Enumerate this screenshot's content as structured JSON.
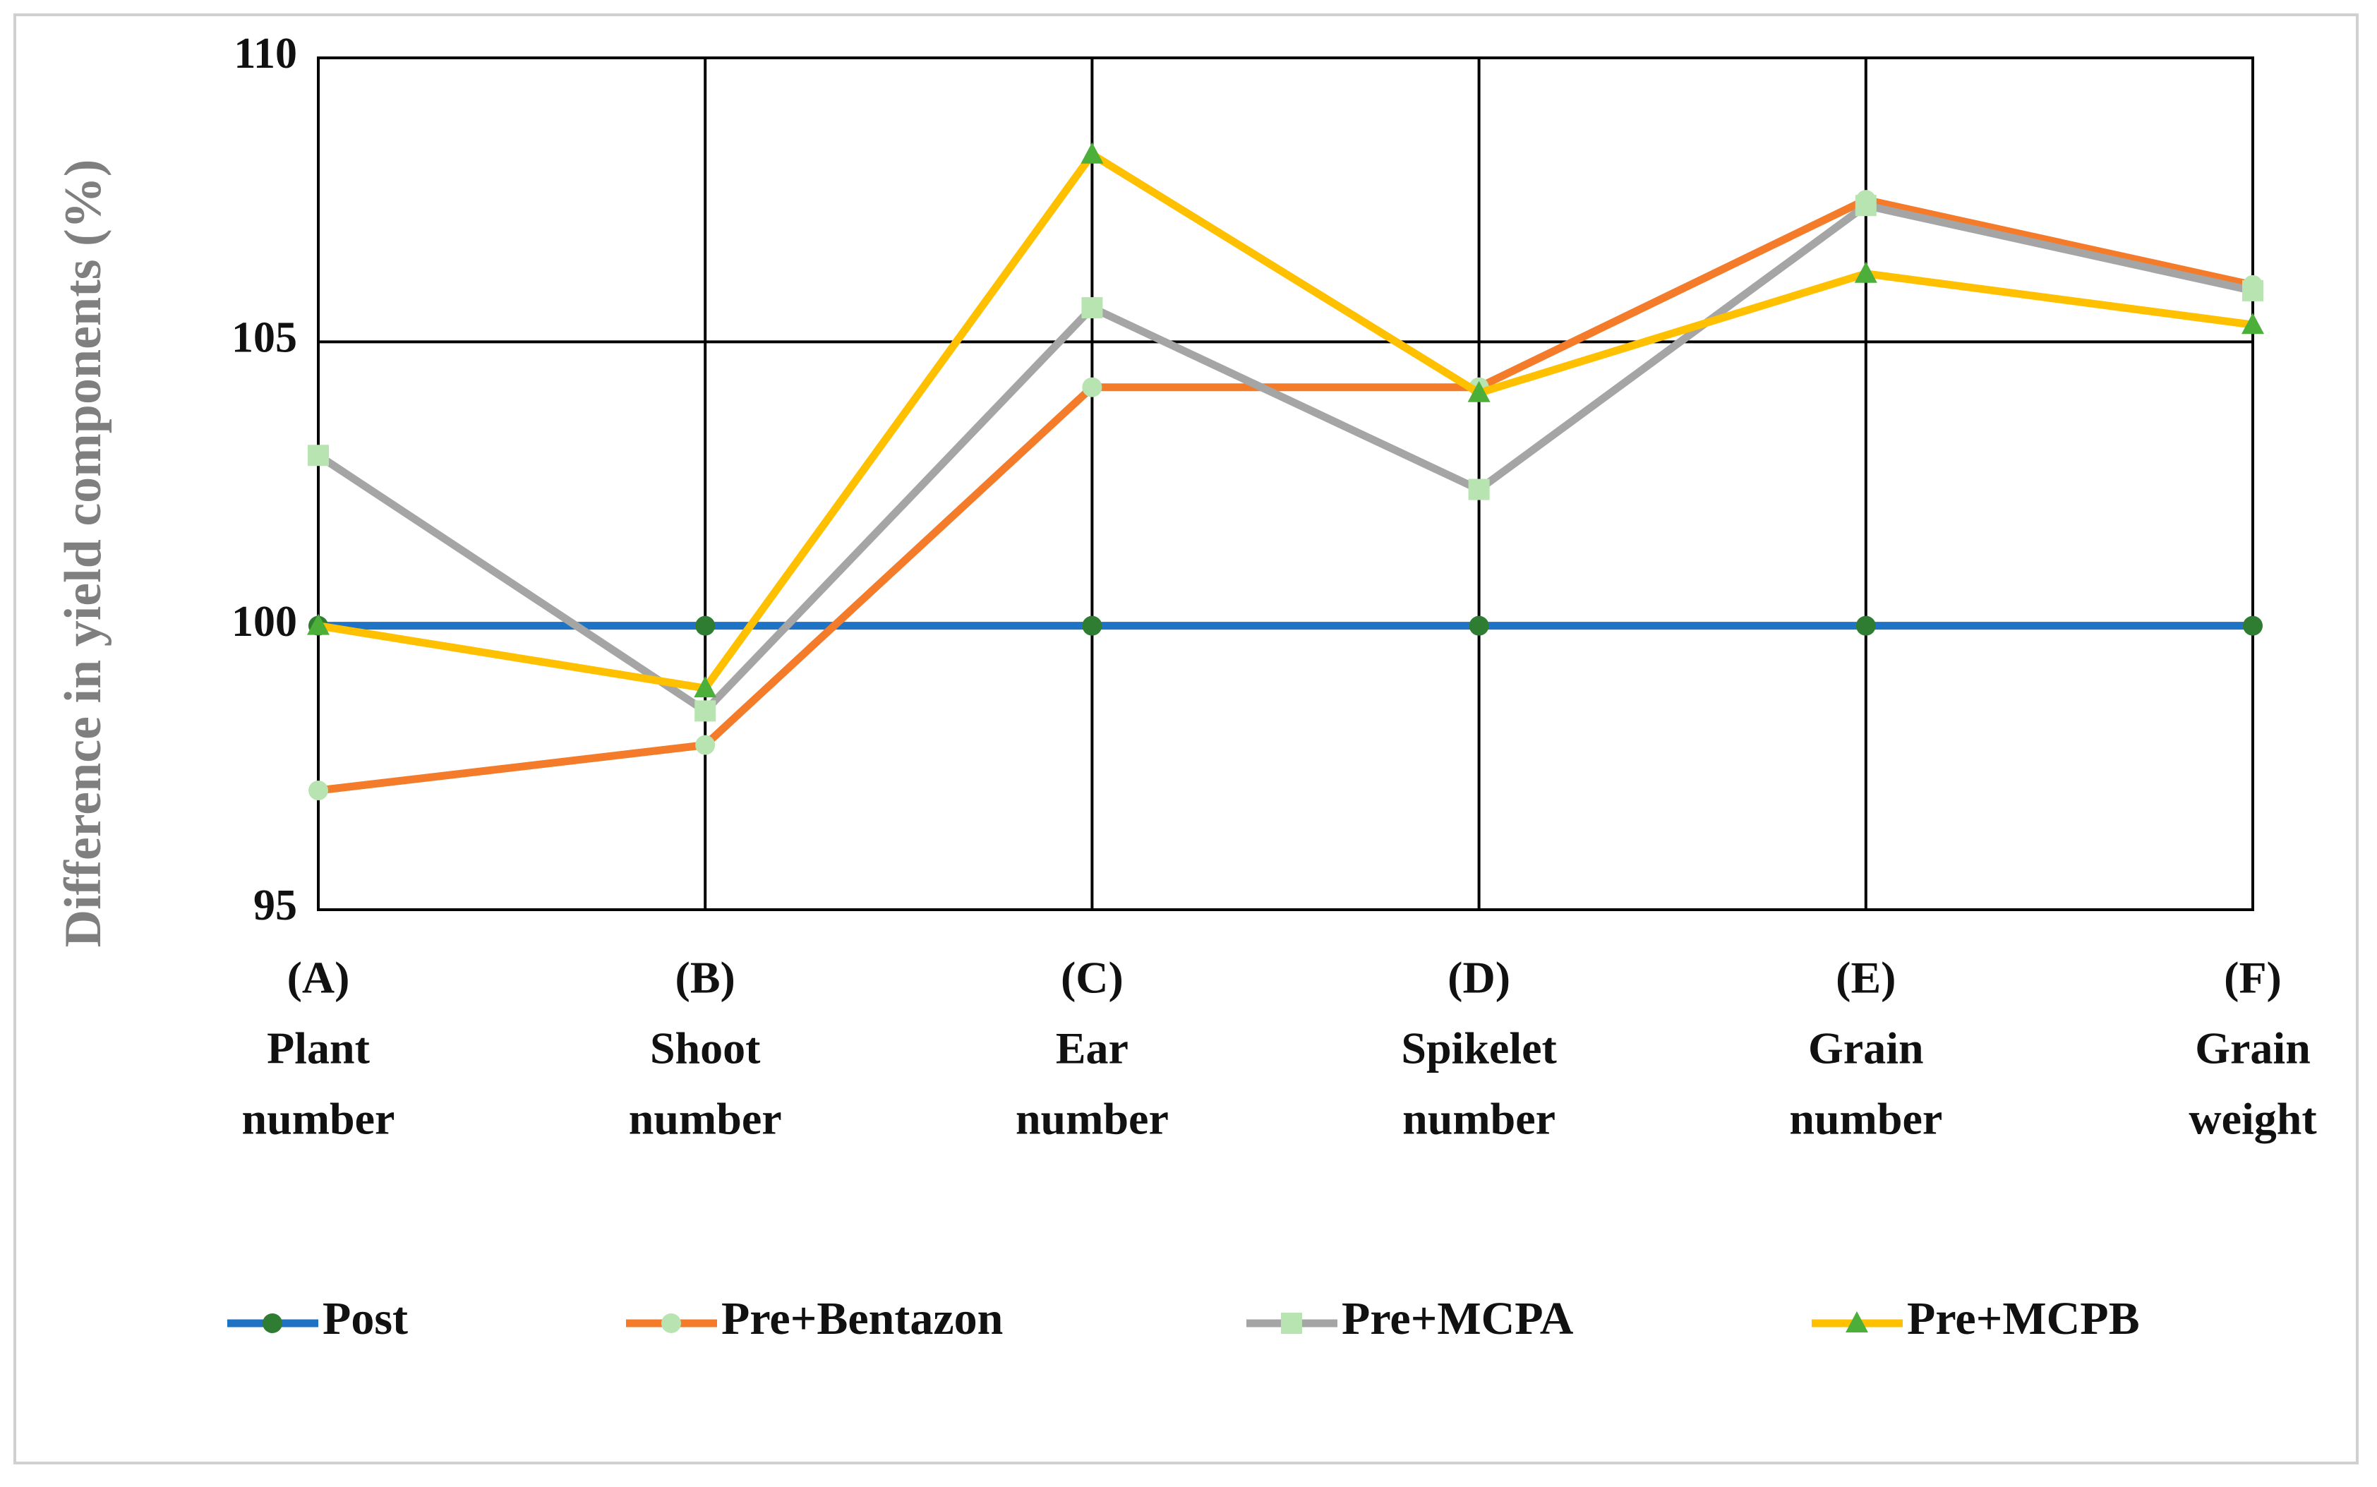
{
  "chart_data": {
    "type": "line",
    "y_label": "Difference in yield components (%)",
    "categories": [
      [
        "(A)",
        "Plant",
        "number"
      ],
      [
        "(B)",
        "Shoot",
        "number"
      ],
      [
        "(C)",
        "Ear",
        "number"
      ],
      [
        "(D)",
        "Spikelet",
        "number"
      ],
      [
        "(E)",
        "Grain",
        "number"
      ],
      [
        "(F)",
        "Grain",
        "weight"
      ]
    ],
    "ylim": [
      95,
      110
    ],
    "yticks": [
      95,
      100,
      105,
      110
    ],
    "grid": true,
    "legend": "bottom",
    "series": [
      {
        "name": "Post",
        "color": "#1f73c4",
        "marker": "circle",
        "marker_color": "#2e7d32",
        "values": [
          100,
          100,
          100,
          100,
          100,
          100
        ]
      },
      {
        "name": "Pre+Bentazon",
        "color": "#f47b2a",
        "marker": "circle",
        "marker_color": "#b7e4b0",
        "values": [
          97.1,
          97.9,
          104.2,
          104.2,
          107.5,
          106.0
        ]
      },
      {
        "name": "Pre+MCPA",
        "color": "#a5a5a5",
        "marker": "square",
        "marker_color": "#b7e4b0",
        "values": [
          103.0,
          98.5,
          105.6,
          102.4,
          107.4,
          105.9
        ]
      },
      {
        "name": "Pre+MCPB",
        "color": "#ffc000",
        "marker": "triangle",
        "marker_color": "#4caf3a",
        "values": [
          100.0,
          98.9,
          108.3,
          104.1,
          106.2,
          105.3
        ]
      }
    ]
  }
}
